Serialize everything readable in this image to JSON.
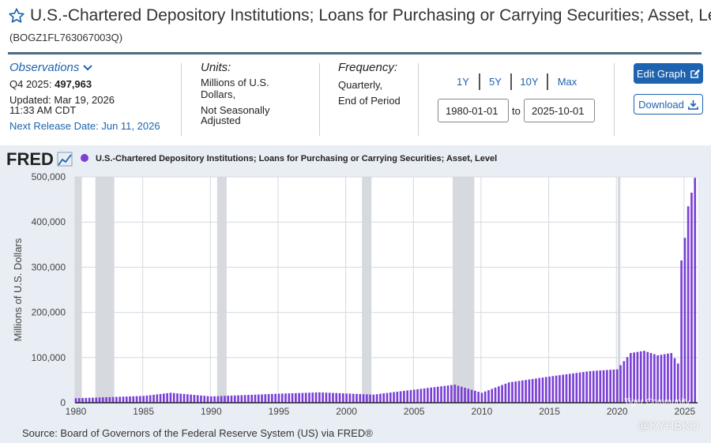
{
  "header": {
    "title": "U.S.-Chartered Depository Institutions; Loans for Purchasing or Carrying Securities; Asset, Level",
    "series_id": "(BOGZ1FL763067003Q)"
  },
  "observations": {
    "label": "Observations",
    "period": "Q4 2025:",
    "value": "497,963",
    "updated_line1": "Updated: Mar 19, 2026",
    "updated_line2": "11:33 AM CDT",
    "next_release": "Next Release Date: Jun 11, 2026"
  },
  "units": {
    "label": "Units:",
    "line1": "Millions of U.S.",
    "line2": "Dollars,",
    "line3": "Not Seasonally",
    "line4": "Adjusted"
  },
  "frequency": {
    "label": "Frequency:",
    "line1": "Quarterly,",
    "line2": "End of Period"
  },
  "range_buttons": [
    "1Y",
    "5Y",
    "10Y",
    "Max"
  ],
  "date_range": {
    "start": "1980-01-01",
    "to_label": "to",
    "end": "2025-10-01"
  },
  "buttons": {
    "edit_graph": "Edit Graph",
    "download": "Download"
  },
  "source": "Source: Board of Governors of the Federal Reserve System (US) via FRED®",
  "watermark": {
    "handle": "@KYHBKO",
    "community": "Tiger Community"
  },
  "colors": {
    "bar": "#7a3fd6",
    "accent": "#1d63b0",
    "recession": "#d6d9de",
    "plot_bg": "#ffffff"
  },
  "chart_data": {
    "type": "bar",
    "logo": "FRED",
    "title": "U.S.-Chartered Depository Institutions; Loans for Purchasing or Carrying Securities; Asset, Level",
    "ylabel": "Millions of U.S. Dollars",
    "xlabel": "",
    "ylim": [
      0,
      500000
    ],
    "xlim": [
      1980.0,
      2026.0
    ],
    "yticks": [
      0,
      100000,
      200000,
      300000,
      400000,
      500000
    ],
    "ytick_labels": [
      "0",
      "100,000",
      "200,000",
      "300,000",
      "400,000",
      "500,000"
    ],
    "xticks": [
      1980,
      1985,
      1990,
      1995,
      2000,
      2005,
      2010,
      2015,
      2020,
      2025
    ],
    "xtick_labels": [
      "1980",
      "1985",
      "1990",
      "1995",
      "2000",
      "2005",
      "2010",
      "2015",
      "2020",
      "2025"
    ],
    "grid": true,
    "legend": "top-left",
    "recessions": [
      [
        1980.0,
        1980.5
      ],
      [
        1981.5,
        1982.9
      ],
      [
        1990.5,
        1991.2
      ],
      [
        2001.2,
        2001.9
      ],
      [
        2007.9,
        2009.5
      ],
      [
        2020.1,
        2020.3
      ]
    ],
    "key_points": [
      {
        "date": "1980-01-01",
        "value": 10000
      },
      {
        "date": "1985-01-01",
        "value": 15000
      },
      {
        "date": "1987-01-01",
        "value": 22000
      },
      {
        "date": "1990-01-01",
        "value": 14000
      },
      {
        "date": "1995-01-01",
        "value": 20000
      },
      {
        "date": "1998-01-01",
        "value": 23000
      },
      {
        "date": "2002-01-01",
        "value": 18000
      },
      {
        "date": "2008-01-01",
        "value": 40000
      },
      {
        "date": "2010-01-01",
        "value": 22000
      },
      {
        "date": "2012-01-01",
        "value": 45000
      },
      {
        "date": "2015-01-01",
        "value": 58000
      },
      {
        "date": "2018-01-01",
        "value": 70000
      },
      {
        "date": "2020-01-01",
        "value": 74000
      },
      {
        "date": "2021-01-01",
        "value": 110000
      },
      {
        "date": "2022-01-01",
        "value": 115000
      },
      {
        "date": "2023-01-01",
        "value": 105000
      },
      {
        "date": "2024-01-01",
        "value": 110000
      },
      {
        "date": "2024-07-01",
        "value": 87000
      },
      {
        "date": "2024-10-01",
        "value": 315000
      },
      {
        "date": "2025-01-01",
        "value": 365000
      },
      {
        "date": "2025-04-01",
        "value": 435000
      },
      {
        "date": "2025-07-01",
        "value": 465000
      },
      {
        "date": "2025-10-01",
        "value": 497963
      }
    ]
  }
}
